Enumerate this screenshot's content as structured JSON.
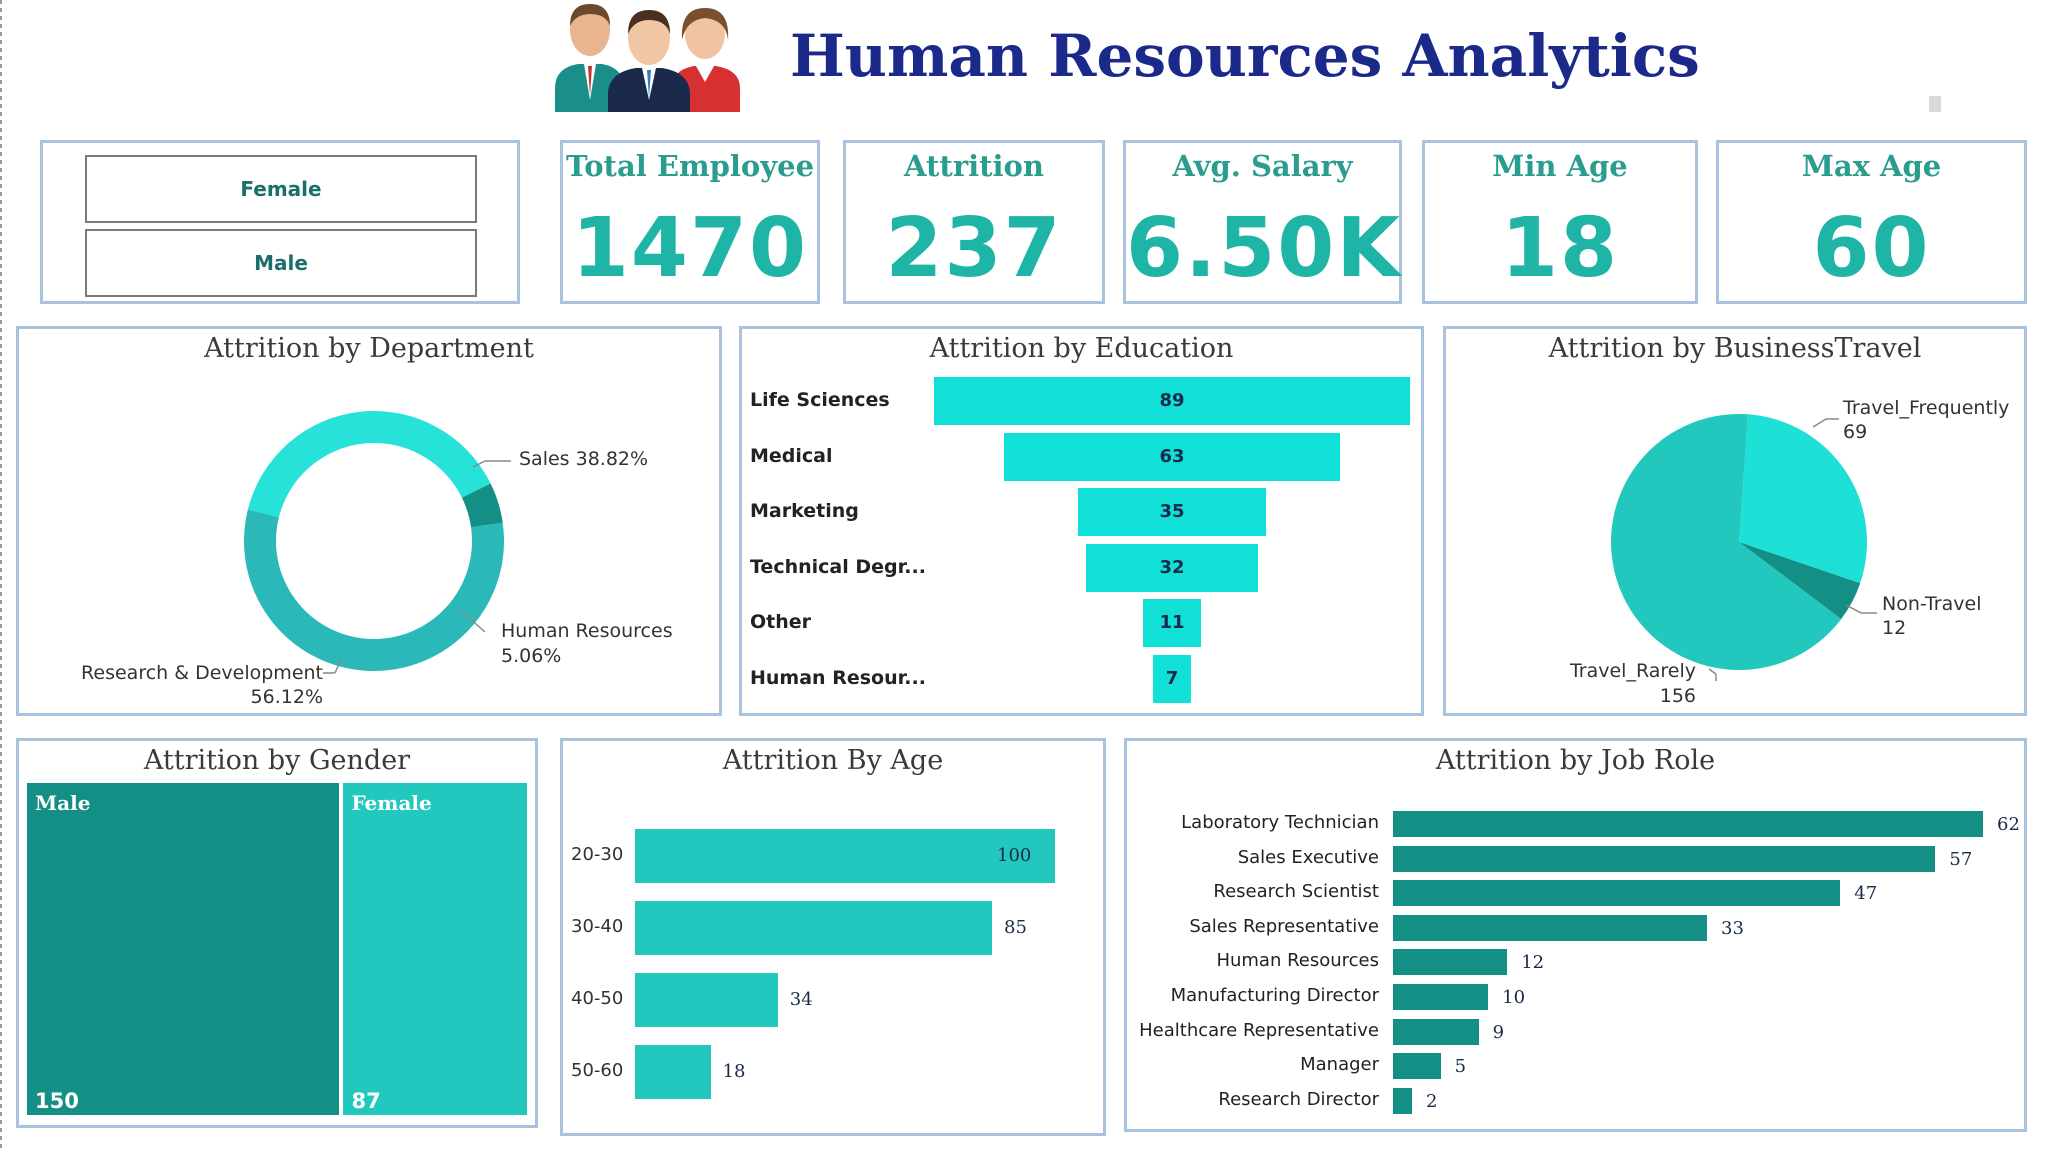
{
  "header": {
    "title": "Human Resources Analytics",
    "colors": {
      "title": "#1b2a8a",
      "accent": "#1fb5a6",
      "dark_teal": "#148f85",
      "light_teal": "#22c7be",
      "cyan": "#10e0d8"
    }
  },
  "slicer": {
    "options": [
      "Female",
      "Male"
    ]
  },
  "kpis": [
    {
      "title": "Total Employee",
      "value": "1470"
    },
    {
      "title": "Attrition",
      "value": "237"
    },
    {
      "title": "Avg. Salary",
      "value": "6.50K"
    },
    {
      "title": "Min Age",
      "value": "18"
    },
    {
      "title": "Max Age",
      "value": "60"
    }
  ],
  "chart_data": [
    {
      "id": "department",
      "type": "pie",
      "title": "Attrition by Department",
      "donut": true,
      "slices": [
        {
          "label": "Sales",
          "percent": 38.82,
          "label_text": "Sales 38.82%",
          "color": "#26e2d8"
        },
        {
          "label": "Human Resources",
          "percent": 5.06,
          "label_text": "Human Resources",
          "pct_text": "5.06%",
          "color": "#148f85"
        },
        {
          "label": "Research & Development",
          "percent": 56.12,
          "label_text": "Research & Development",
          "pct_text": "56.12%",
          "color": "#2ab8b8"
        }
      ]
    },
    {
      "id": "education",
      "type": "bar",
      "orientation": "funnel",
      "title": "Attrition by Education",
      "categories": [
        "Life Sciences",
        "Medical",
        "Marketing",
        "Technical Degr...",
        "Other",
        "Human Resour..."
      ],
      "values": [
        89,
        63,
        35,
        32,
        11,
        7
      ],
      "color": "#10e0d8"
    },
    {
      "id": "business_travel",
      "type": "pie",
      "title": "Attrition by BusinessTravel",
      "slices": [
        {
          "label": "Travel_Frequently",
          "value": 69,
          "color": "#1de0d6"
        },
        {
          "label": "Non-Travel",
          "value": 12,
          "color": "#148f85"
        },
        {
          "label": "Travel_Rarely",
          "value": 156,
          "color": "#22c7be"
        }
      ]
    },
    {
      "id": "gender",
      "type": "treemap",
      "title": "Attrition by Gender",
      "items": [
        {
          "label": "Male",
          "value": 150,
          "color": "#148f85"
        },
        {
          "label": "Female",
          "value": 87,
          "color": "#22c7be"
        }
      ]
    },
    {
      "id": "age",
      "type": "bar",
      "orientation": "horizontal",
      "title": "Attrition By Age",
      "categories": [
        "20-30",
        "30-40",
        "40-50",
        "50-60"
      ],
      "values": [
        100,
        85,
        34,
        18
      ],
      "color": "#22c7be"
    },
    {
      "id": "job_role",
      "type": "bar",
      "orientation": "horizontal",
      "title": "Attrition by Job Role",
      "categories": [
        "Laboratory Technician",
        "Sales Executive",
        "Research Scientist",
        "Sales Representative",
        "Human Resources",
        "Manufacturing Director",
        "Healthcare Representative",
        "Manager",
        "Research Director"
      ],
      "values": [
        62,
        57,
        47,
        33,
        12,
        10,
        9,
        5,
        2
      ],
      "color": "#148f85"
    }
  ]
}
